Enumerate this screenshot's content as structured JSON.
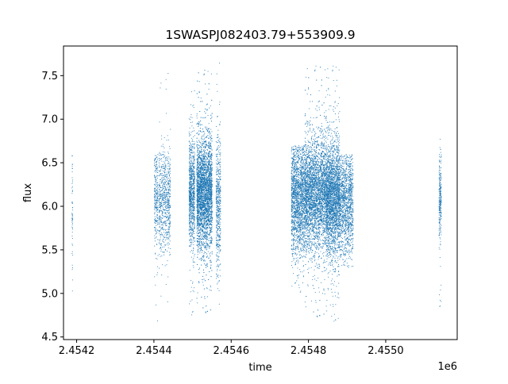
{
  "chart_data": {
    "type": "scatter",
    "title": "1SWASPJ082403.79+553909.9",
    "xlabel": "time",
    "ylabel": "flux",
    "x_offset_label": "1e6",
    "xlim": [
      2454166,
      2455185
    ],
    "ylim": [
      4.47,
      7.84
    ],
    "x_ticks": [
      2454200,
      2454400,
      2454600,
      2454800,
      2455000
    ],
    "x_tick_labels": [
      "2.4542",
      "2.4544",
      "2.4546",
      "2.4548",
      "2.4550"
    ],
    "y_ticks": [
      4.5,
      5.0,
      5.5,
      6.0,
      6.5,
      7.0,
      7.5
    ],
    "y_tick_labels": [
      "4.5",
      "5.0",
      "5.5",
      "6.0",
      "6.5",
      "7.0",
      "7.5"
    ],
    "grid": false,
    "marker_color": "#1f77b4",
    "clusters": [
      {
        "x_start": 2454187,
        "x_end": 2454189,
        "y_center": 5.95,
        "y_spread": 0.35,
        "y_min": 4.65,
        "y_max": 6.6,
        "density": 60
      },
      {
        "x_start": 2454400,
        "x_end": 2454410,
        "y_center": 6.1,
        "y_spread": 0.3,
        "y_min": 4.6,
        "y_max": 6.6,
        "density": 250
      },
      {
        "x_start": 2454412,
        "x_end": 2454442,
        "y_center": 6.05,
        "y_spread": 0.3,
        "y_min": 4.8,
        "y_max": 7.6,
        "density": 700
      },
      {
        "x_start": 2454490,
        "x_end": 2454505,
        "y_center": 6.15,
        "y_spread": 0.3,
        "y_min": 4.75,
        "y_max": 7.4,
        "density": 900
      },
      {
        "x_start": 2454510,
        "x_end": 2454550,
        "y_center": 6.15,
        "y_spread": 0.32,
        "y_min": 4.75,
        "y_max": 7.6,
        "density": 4200
      },
      {
        "x_start": 2454560,
        "x_end": 2454572,
        "y_center": 6.05,
        "y_spread": 0.4,
        "y_min": 4.65,
        "y_max": 7.7,
        "density": 500
      },
      {
        "x_start": 2454755,
        "x_end": 2454790,
        "y_center": 6.1,
        "y_spread": 0.32,
        "y_min": 5.0,
        "y_max": 6.7,
        "density": 1800
      },
      {
        "x_start": 2454790,
        "x_end": 2454845,
        "y_center": 6.15,
        "y_spread": 0.32,
        "y_min": 4.7,
        "y_max": 7.65,
        "density": 3800
      },
      {
        "x_start": 2454845,
        "x_end": 2454880,
        "y_center": 6.1,
        "y_spread": 0.32,
        "y_min": 4.65,
        "y_max": 7.65,
        "density": 2600
      },
      {
        "x_start": 2454880,
        "x_end": 2454915,
        "y_center": 6.05,
        "y_spread": 0.3,
        "y_min": 5.3,
        "y_max": 6.6,
        "density": 1300
      },
      {
        "x_start": 2455137,
        "x_end": 2455143,
        "y_center": 6.1,
        "y_spread": 0.25,
        "y_min": 4.7,
        "y_max": 6.8,
        "density": 260
      }
    ]
  }
}
